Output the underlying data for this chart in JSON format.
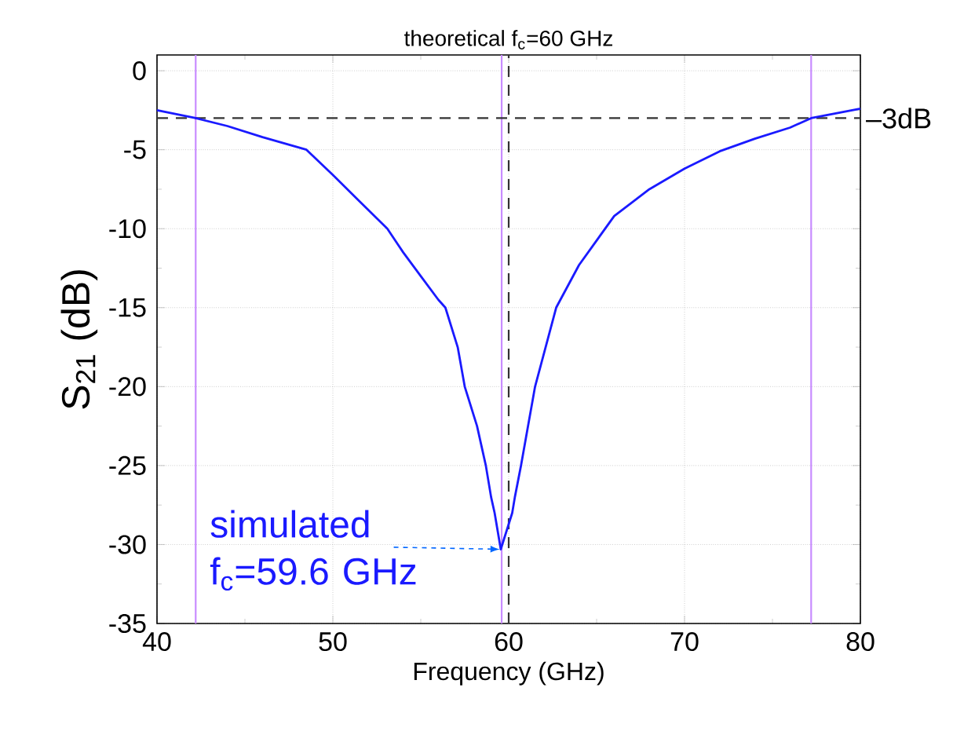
{
  "chart_data": {
    "type": "line",
    "xlabel": "Frequency (GHz)",
    "ylabel": "S$_{21}$ (dB)",
    "xlim": [
      40,
      80
    ],
    "ylim": [
      -35,
      1
    ],
    "xticks": [
      40,
      50,
      60,
      70,
      80
    ],
    "yticks": [
      -35,
      -30,
      -25,
      -20,
      -15,
      -10,
      -5,
      0
    ],
    "grid": true,
    "series": [
      {
        "color": "#1a1aff",
        "x": [
          40,
          42.2,
          44,
          46,
          48.5,
          50,
          52,
          53.1,
          54,
          55,
          56,
          56.4,
          57.1,
          57.5,
          58.2,
          58.7,
          59.0,
          59.2,
          59.55,
          60.2,
          60.35,
          60.7,
          61.1,
          61.5,
          62.1,
          62.7,
          64,
          66,
          68,
          70,
          72,
          74,
          76,
          77.2,
          80
        ],
        "values": [
          -2.5,
          -3,
          -3.5,
          -4.2,
          -5,
          -6.6,
          -8.8,
          -10,
          -11.5,
          -13,
          -14.5,
          -15,
          -17.5,
          -20,
          -22.5,
          -25,
          -27,
          -28,
          -30.3,
          -28,
          -27,
          -25,
          -22.5,
          -20,
          -17.5,
          -15,
          -12.3,
          -9.2,
          -7.5,
          -6.2,
          -5.1,
          -4.3,
          -3.6,
          -3,
          -2.4
        ]
      }
    ],
    "ref_lines": [
      {
        "axis": "x",
        "value": 42.2,
        "color": "#c88cff",
        "line_style": "solid"
      },
      {
        "axis": "x",
        "value": 59.6,
        "color": "#c88cff",
        "line_style": "solid"
      },
      {
        "axis": "x",
        "value": 77.2,
        "color": "#c88cff",
        "line_style": "solid"
      },
      {
        "axis": "x",
        "value": 60,
        "label": "theoretical f$_{c}$=60 GHz",
        "color": "#333333",
        "line_style": "dashed"
      },
      {
        "axis": "y",
        "value": -3,
        "label": "–3dB",
        "color": "#333333",
        "line_style": "dashed"
      }
    ],
    "annotations": [
      {
        "text": "simulated f$_{c}$=59.6 GHz",
        "x": 59.6,
        "y": -30.3
      }
    ]
  }
}
